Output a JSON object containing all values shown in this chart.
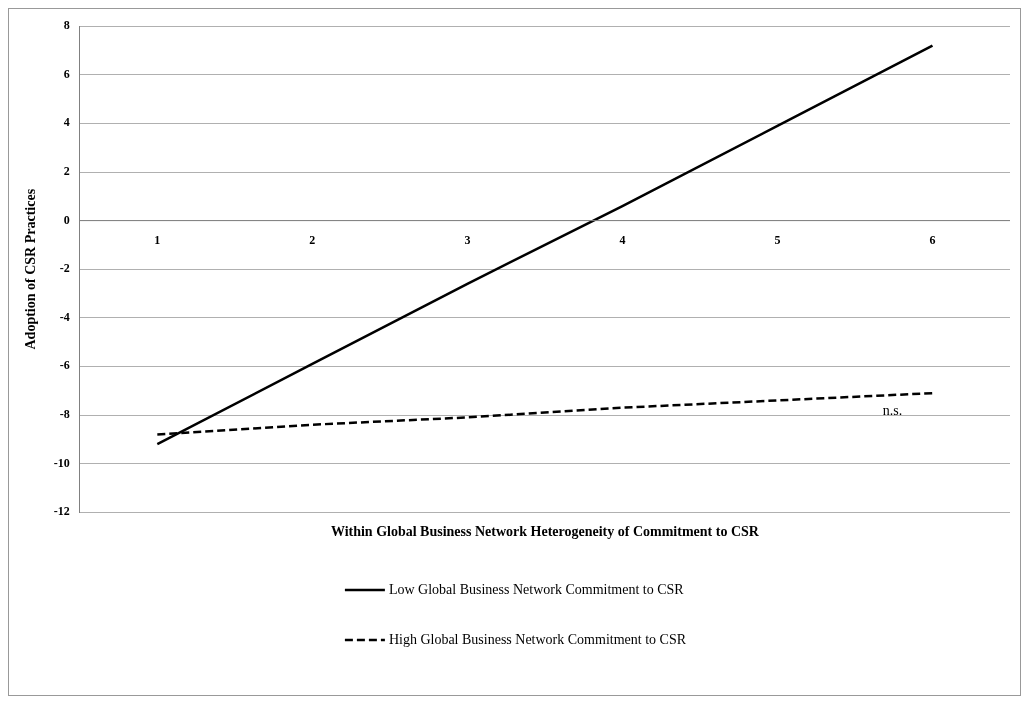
{
  "chart_data": {
    "type": "line",
    "xlabel": "Within Global Business Network Heterogeneity of Commitment to CSR",
    "ylabel": "Adoption of CSR Practices",
    "categories": [
      "1",
      "2",
      "3",
      "4",
      "5",
      "6"
    ],
    "series": [
      {
        "name": "Low Global Business Network Commitment to CSR",
        "color": "#000000",
        "values": [
          -9.2,
          -5.9,
          -2.6,
          0.6,
          3.9,
          7.2
        ],
        "line_style": "solid"
      },
      {
        "name": "High Global Business Network Commitment to CSR",
        "color": "#000000",
        "values": [
          -8.8,
          -8.4,
          -8.1,
          -7.7,
          -7.4,
          -7.1
        ],
        "line_style": "dashed"
      }
    ],
    "ylim": [
      -12,
      8
    ],
    "yticks": [
      -12,
      -10,
      -8,
      -6,
      -4,
      -2,
      0,
      2,
      4,
      6,
      8
    ],
    "grid": "y",
    "legend": "bottom",
    "marker": "none",
    "annotations": [
      "n.s."
    ]
  }
}
